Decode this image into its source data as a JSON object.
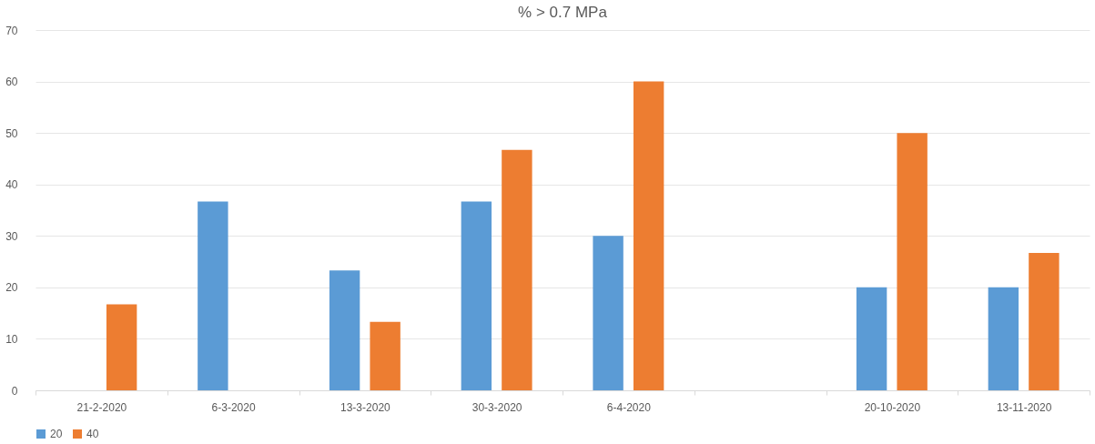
{
  "chart_data": {
    "type": "bar",
    "title": "% > 0.7 MPa",
    "categories": [
      "21-2-2020",
      "6-3-2020",
      "13-3-2020",
      "30-3-2020",
      "6-4-2020",
      null,
      "20-10-2020",
      "13-11-2020"
    ],
    "series": [
      {
        "name": "20",
        "color": "#5b9bd5",
        "values": [
          null,
          36.7,
          23.3,
          36.7,
          30,
          null,
          20,
          20
        ]
      },
      {
        "name": "40",
        "color": "#ed7d31",
        "values": [
          16.7,
          null,
          13.3,
          46.7,
          60,
          null,
          50,
          26.7
        ]
      }
    ],
    "ylim": [
      0,
      70
    ],
    "yticks": [
      0,
      10,
      20,
      30,
      40,
      50,
      60,
      70
    ],
    "grid": "y",
    "legend": "bottom"
  }
}
